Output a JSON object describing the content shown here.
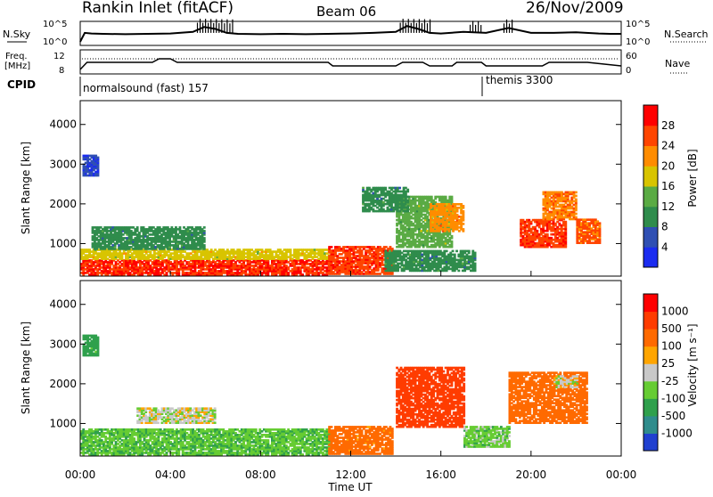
{
  "header": {
    "station": "Rankin Inlet (fitACF)",
    "beam": "Beam 06",
    "date": "26/Nov/2009"
  },
  "chart_data": [
    {
      "type": "line",
      "panel": "noise",
      "ylabel_left": "N.Sky",
      "ylabel_right": "N.Search",
      "yticks_left": [
        "10^5",
        "10^0"
      ],
      "yticks_right": [
        "10^5",
        "10^0"
      ],
      "series": [
        {
          "name": "N.Sky",
          "x": [
            0,
            0.2,
            0.5,
            1.0,
            2.0,
            3.0,
            4.0,
            5.0,
            5.5,
            6.0,
            6.5,
            7.0,
            8.0,
            9.0,
            10.0,
            11.0,
            12.0,
            13.0,
            14.0,
            14.5,
            15.0,
            15.5,
            16.0,
            17.0,
            18.0,
            19.0,
            20.0,
            21.0,
            22.0,
            23.0,
            23.5,
            24.0
          ],
          "y": [
            0.1,
            0.55,
            0.52,
            0.5,
            0.48,
            0.5,
            0.52,
            0.6,
            0.85,
            0.75,
            0.55,
            0.5,
            0.48,
            0.5,
            0.48,
            0.5,
            0.52,
            0.55,
            0.6,
            0.9,
            0.75,
            0.55,
            0.52,
            0.6,
            0.55,
            0.8,
            0.55,
            0.55,
            0.58,
            0.52,
            0.5,
            0.5
          ]
        }
      ]
    },
    {
      "type": "line",
      "panel": "frequency",
      "ylabel_left": "Freq. [MHz]",
      "ylabel_right": "Nave",
      "yticks_left": [
        "12",
        "8"
      ],
      "yticks_right": [
        "60",
        "0"
      ],
      "series": [
        {
          "name": "Freq.",
          "x": [
            0,
            0.3,
            3.2,
            3.5,
            4.0,
            4.3,
            11.0,
            11.2,
            14.0,
            14.3,
            15.2,
            15.5,
            16.5,
            16.7,
            17.8,
            18.0,
            20.5,
            20.8,
            22.5,
            24.0
          ],
          "y": [
            9,
            11,
            11,
            12,
            12,
            11,
            11,
            10,
            10,
            11,
            11,
            10,
            10,
            11,
            11,
            10,
            10,
            11,
            11,
            10
          ]
        }
      ]
    },
    {
      "type": "table",
      "panel": "cpid",
      "label": "CPID",
      "segments": [
        {
          "start": 0,
          "end": 18.0,
          "name": "normalsound (fast)",
          "id": "157"
        },
        {
          "start": 18.0,
          "end": 24.0,
          "name": "themis",
          "id": "3300"
        }
      ]
    },
    {
      "type": "heatmap",
      "panel": "power",
      "ylabel": "Slant Range [km]",
      "yticks": [
        1000,
        2000,
        3000,
        4000
      ],
      "ylim": [
        180,
        4600
      ],
      "xlim": [
        0,
        24
      ],
      "colorbar_label": "Power [dB]",
      "colorbar_ticks": [
        4,
        8,
        12,
        16,
        20,
        24,
        28
      ],
      "colorbar_colors": [
        "#1b2cf0",
        "#2f4fb3",
        "#2f8c4c",
        "#5aab44",
        "#d8c400",
        "#ff8c00",
        "#ff4500",
        "#ff0000"
      ],
      "blobs": [
        {
          "t0": 0.0,
          "t1": 11.0,
          "r0": 200,
          "r1": 600,
          "v": 28
        },
        {
          "t0": 0.0,
          "t1": 11.0,
          "r0": 600,
          "r1": 850,
          "v": 18
        },
        {
          "t0": 0.5,
          "t1": 5.5,
          "r0": 850,
          "r1": 1400,
          "v": 10
        },
        {
          "t0": 11.0,
          "t1": 13.8,
          "r0": 220,
          "r1": 900,
          "v": 27
        },
        {
          "t0": 13.5,
          "t1": 17.5,
          "r0": 300,
          "r1": 800,
          "v": 10
        },
        {
          "t0": 14.0,
          "t1": 16.5,
          "r0": 900,
          "r1": 2200,
          "v": 14
        },
        {
          "t0": 15.5,
          "t1": 17.0,
          "r0": 1300,
          "r1": 2000,
          "v": 22
        },
        {
          "t0": 19.5,
          "t1": 21.5,
          "r0": 900,
          "r1": 1600,
          "v": 27
        },
        {
          "t0": 20.5,
          "t1": 22.0,
          "r0": 1600,
          "r1": 2300,
          "v": 23
        },
        {
          "t0": 22.0,
          "t1": 23.0,
          "r0": 1000,
          "r1": 1600,
          "v": 25
        },
        {
          "t0": 0.1,
          "t1": 0.8,
          "r0": 2700,
          "r1": 3200,
          "v": 5
        },
        {
          "t0": 12.5,
          "t1": 14.5,
          "r0": 1800,
          "r1": 2400,
          "v": 10
        }
      ]
    },
    {
      "type": "heatmap",
      "panel": "velocity",
      "ylabel": "Slant Range [km]",
      "yticks": [
        1000,
        2000,
        3000,
        4000
      ],
      "ylim": [
        180,
        4600
      ],
      "xlim": [
        0,
        24
      ],
      "xticks": [
        "00:00",
        "04:00",
        "08:00",
        "12:00",
        "16:00",
        "20:00",
        "00:00"
      ],
      "xlabel": "Time UT",
      "colorbar_label": "Velocity [m s⁻¹]",
      "colorbar_ticks": [
        1000,
        500,
        100,
        25,
        -25,
        -100,
        -500,
        -1000
      ],
      "colorbar_colors": [
        "#2040d0",
        "#2f8c8c",
        "#2fa04c",
        "#66cc33",
        "#c8c8c8",
        "#ffa500",
        "#ff6a00",
        "#ff3c00",
        "#ff0000"
      ],
      "blobs": [
        {
          "t0": 0.0,
          "t1": 11.0,
          "r0": 200,
          "r1": 850,
          "v": 80
        },
        {
          "t0": 2.5,
          "t1": 6.0,
          "r0": 1000,
          "r1": 1400,
          "v": 0
        },
        {
          "t0": 11.0,
          "t1": 13.8,
          "r0": 220,
          "r1": 900,
          "v": -150
        },
        {
          "t0": 14.0,
          "t1": 17.0,
          "r0": 900,
          "r1": 2400,
          "v": -600
        },
        {
          "t0": 17.0,
          "t1": 19.0,
          "r0": 400,
          "r1": 900,
          "v": 60
        },
        {
          "t0": 19.0,
          "t1": 22.5,
          "r0": 1000,
          "r1": 2300,
          "v": -200
        },
        {
          "t0": 21.0,
          "t1": 22.0,
          "r0": 1900,
          "r1": 2200,
          "v": 0
        },
        {
          "t0": 0.1,
          "t1": 0.8,
          "r0": 2700,
          "r1": 3200,
          "v": 150
        }
      ]
    }
  ]
}
